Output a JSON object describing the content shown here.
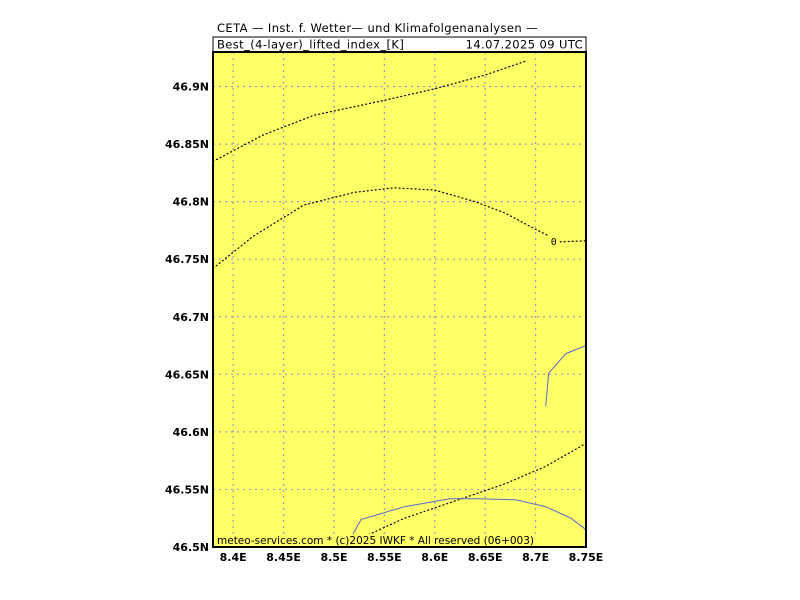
{
  "header": {
    "title": "CETA — Inst. f. Wetter— und Klimafolgenanalysen —",
    "field": "Best_(4-layer)_lifted_index_[K]",
    "valid_time": "14.07.2025 09 UTC"
  },
  "footer": {
    "credit": "meteo-services.com * (c)2025 IWKF * All reserved (06+003)"
  },
  "map": {
    "lon_range": [
      8.38,
      8.75
    ],
    "lat_range": [
      46.5,
      46.93
    ],
    "background_color": "#ffff66",
    "grid_color": "#9a9acc",
    "coast_color": "#5a6ad0",
    "x_ticks": [
      {
        "value": 8.4,
        "label": "8.4E"
      },
      {
        "value": 8.45,
        "label": "8.45E"
      },
      {
        "value": 8.5,
        "label": "8.5E"
      },
      {
        "value": 8.55,
        "label": "8.55E"
      },
      {
        "value": 8.6,
        "label": "8.6E"
      },
      {
        "value": 8.65,
        "label": "8.65E"
      },
      {
        "value": 8.7,
        "label": "8.7E"
      },
      {
        "value": 8.75,
        "label": "8.75E"
      }
    ],
    "y_ticks": [
      {
        "value": 46.5,
        "label": "46.5N"
      },
      {
        "value": 46.55,
        "label": "46.55N"
      },
      {
        "value": 46.6,
        "label": "46.6N"
      },
      {
        "value": 46.65,
        "label": "46.65N"
      },
      {
        "value": 46.7,
        "label": "46.7N"
      },
      {
        "value": 46.75,
        "label": "46.75N"
      },
      {
        "value": 46.8,
        "label": "46.8N"
      },
      {
        "value": 46.85,
        "label": "46.85N"
      },
      {
        "value": 46.9,
        "label": "46.9N"
      }
    ],
    "contour_lines": [
      {
        "points": [
          [
            8.38,
            46.835
          ],
          [
            8.43,
            46.858
          ],
          [
            8.48,
            46.875
          ],
          [
            8.55,
            46.888
          ],
          [
            8.6,
            46.898
          ],
          [
            8.65,
            46.91
          ],
          [
            8.69,
            46.922
          ]
        ]
      },
      {
        "points": [
          [
            8.38,
            46.742
          ],
          [
            8.42,
            46.77
          ],
          [
            8.47,
            46.797
          ],
          [
            8.52,
            46.808
          ],
          [
            8.56,
            46.812
          ],
          [
            8.6,
            46.81
          ],
          [
            8.64,
            46.8
          ],
          [
            8.67,
            46.79
          ],
          [
            8.7,
            46.776
          ],
          [
            8.725,
            46.765
          ],
          [
            8.75,
            46.766
          ]
        ],
        "label": "0",
        "label_at": [
          8.718,
          46.766
        ]
      },
      {
        "points": [
          [
            8.52,
            46.505
          ],
          [
            8.57,
            46.525
          ],
          [
            8.62,
            46.54
          ],
          [
            8.67,
            46.555
          ],
          [
            8.71,
            46.57
          ],
          [
            8.75,
            46.59
          ]
        ]
      }
    ],
    "coastlines": [
      {
        "points": [
          [
            8.51,
            46.5
          ],
          [
            8.518,
            46.51
          ],
          [
            8.527,
            46.524
          ],
          [
            8.57,
            46.535
          ],
          [
            8.615,
            46.542
          ],
          [
            8.645,
            46.542
          ],
          [
            8.68,
            46.541
          ],
          [
            8.71,
            46.535
          ],
          [
            8.735,
            46.525
          ],
          [
            8.75,
            46.515
          ]
        ]
      },
      {
        "points": [
          [
            8.71,
            46.622
          ],
          [
            8.713,
            46.651
          ],
          [
            8.73,
            46.668
          ],
          [
            8.75,
            46.675
          ]
        ]
      }
    ]
  }
}
